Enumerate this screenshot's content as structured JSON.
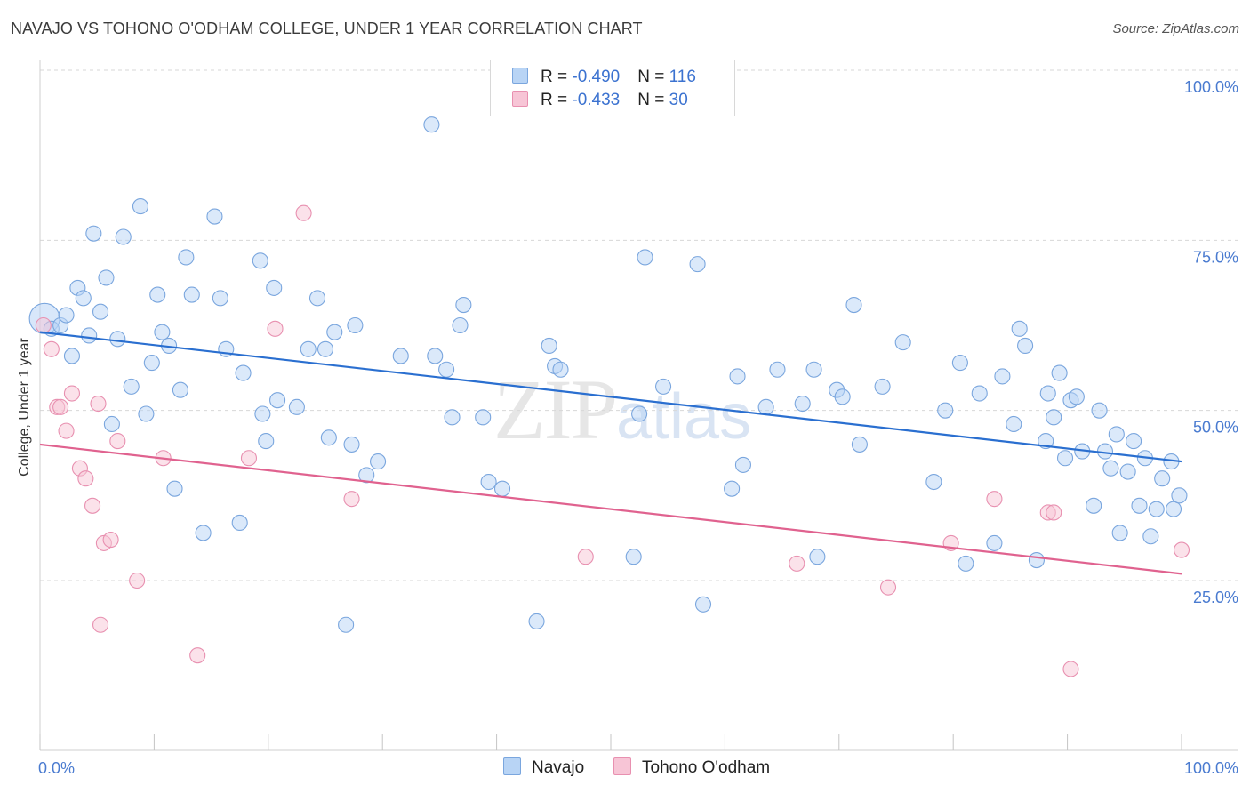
{
  "header": {
    "title": "NAVAJO VS TOHONO O'ODHAM COLLEGE, UNDER 1 YEAR CORRELATION CHART",
    "source": "Source: ZipAtlas.com"
  },
  "watermark": {
    "zip": "ZIP",
    "atlas": "atlas"
  },
  "legend": {
    "rows": [
      {
        "r_label": "R = ",
        "r_value": "-0.490",
        "n_label": "N = ",
        "n_value": "116"
      },
      {
        "r_label": "R = ",
        "r_value": "-0.433",
        "n_label": "N = ",
        "n_value": "30"
      }
    ]
  },
  "bottom_legend": {
    "navajo": "Navajo",
    "tohono": "Tohono O'odham"
  },
  "colors": {
    "navajo_fill": "#b8d4f5",
    "navajo_stroke": "#7aa6de",
    "navajo_line": "#2a6fd0",
    "tohono_fill": "#f7c5d6",
    "tohono_stroke": "#e890b0",
    "tohono_line": "#e0628f",
    "grid": "#d7d7d7",
    "axis_text": "#4a7bd0"
  },
  "chart_data": {
    "type": "scatter",
    "title": "NAVAJO VS TOHONO O'ODHAM COLLEGE, UNDER 1 YEAR CORRELATION CHART",
    "xlabel": "",
    "ylabel": "College, Under 1 year",
    "xlim": [
      0,
      100
    ],
    "ylim": [
      0,
      100
    ],
    "x_tick_labels": [
      "0.0%",
      "100.0%"
    ],
    "y_ticks": [
      25,
      50,
      75,
      100
    ],
    "y_tick_labels": [
      "25.0%",
      "50.0%",
      "75.0%",
      "100.0%"
    ],
    "grid": true,
    "series": [
      {
        "name": "Navajo",
        "r": -0.49,
        "n": 116,
        "trend": [
          [
            0,
            61.5
          ],
          [
            100,
            42.5
          ]
        ],
        "points": [
          [
            0.4,
            63.5
          ],
          [
            1.0,
            62
          ],
          [
            1.8,
            62.5
          ],
          [
            2.3,
            64
          ],
          [
            2.8,
            58
          ],
          [
            3.3,
            68
          ],
          [
            3.8,
            66.5
          ],
          [
            4.3,
            61
          ],
          [
            4.7,
            76
          ],
          [
            5.3,
            64.5
          ],
          [
            5.8,
            69.5
          ],
          [
            6.3,
            48
          ],
          [
            6.8,
            60.5
          ],
          [
            7.3,
            75.5
          ],
          [
            8.0,
            53.5
          ],
          [
            8.8,
            80
          ],
          [
            9.3,
            49.5
          ],
          [
            9.8,
            57
          ],
          [
            10.3,
            67
          ],
          [
            10.7,
            61.5
          ],
          [
            11.3,
            59.5
          ],
          [
            11.8,
            38.5
          ],
          [
            12.3,
            53
          ],
          [
            12.8,
            72.5
          ],
          [
            13.3,
            67
          ],
          [
            14.3,
            32
          ],
          [
            15.3,
            78.5
          ],
          [
            15.8,
            66.5
          ],
          [
            16.3,
            59
          ],
          [
            17.5,
            33.5
          ],
          [
            17.8,
            55.5
          ],
          [
            19.3,
            72
          ],
          [
            19.5,
            49.5
          ],
          [
            19.8,
            45.5
          ],
          [
            20.5,
            68
          ],
          [
            20.8,
            51.5
          ],
          [
            22.5,
            50.5
          ],
          [
            23.5,
            59
          ],
          [
            24.3,
            66.5
          ],
          [
            25.0,
            59
          ],
          [
            25.3,
            46
          ],
          [
            25.8,
            61.5
          ],
          [
            26.8,
            18.5
          ],
          [
            27.3,
            45
          ],
          [
            27.6,
            62.5
          ],
          [
            28.6,
            40.5
          ],
          [
            29.6,
            42.5
          ],
          [
            31.6,
            58
          ],
          [
            34.3,
            92
          ],
          [
            34.6,
            58
          ],
          [
            35.6,
            56
          ],
          [
            36.1,
            49
          ],
          [
            36.8,
            62.5
          ],
          [
            37.1,
            65.5
          ],
          [
            38.8,
            49
          ],
          [
            39.3,
            39.5
          ],
          [
            40.5,
            38.5
          ],
          [
            43.5,
            19
          ],
          [
            44.6,
            59.5
          ],
          [
            45.1,
            56.5
          ],
          [
            45.6,
            56
          ],
          [
            52.0,
            28.5
          ],
          [
            52.5,
            49.5
          ],
          [
            53.0,
            72.5
          ],
          [
            54.6,
            53.5
          ],
          [
            57.6,
            71.5
          ],
          [
            58.1,
            21.5
          ],
          [
            60.6,
            38.5
          ],
          [
            61.1,
            55
          ],
          [
            61.6,
            42
          ],
          [
            63.6,
            50.5
          ],
          [
            64.6,
            56
          ],
          [
            66.8,
            51
          ],
          [
            67.8,
            56
          ],
          [
            68.1,
            28.5
          ],
          [
            69.8,
            53
          ],
          [
            70.3,
            52
          ],
          [
            71.3,
            65.5
          ],
          [
            71.8,
            45
          ],
          [
            73.8,
            53.5
          ],
          [
            75.6,
            60
          ],
          [
            78.3,
            39.5
          ],
          [
            79.3,
            50
          ],
          [
            80.6,
            57
          ],
          [
            81.1,
            27.5
          ],
          [
            82.3,
            52.5
          ],
          [
            83.6,
            30.5
          ],
          [
            84.3,
            55
          ],
          [
            85.3,
            48
          ],
          [
            85.8,
            62
          ],
          [
            86.3,
            59.5
          ],
          [
            87.3,
            28
          ],
          [
            88.1,
            45.5
          ],
          [
            88.3,
            52.5
          ],
          [
            88.8,
            49
          ],
          [
            89.3,
            55.5
          ],
          [
            89.8,
            43
          ],
          [
            90.3,
            51.5
          ],
          [
            90.8,
            52
          ],
          [
            91.3,
            44
          ],
          [
            92.3,
            36
          ],
          [
            92.8,
            50
          ],
          [
            93.3,
            44
          ],
          [
            93.8,
            41.5
          ],
          [
            94.3,
            46.5
          ],
          [
            94.6,
            32
          ],
          [
            95.3,
            41
          ],
          [
            95.8,
            45.5
          ],
          [
            96.3,
            36
          ],
          [
            96.8,
            43
          ],
          [
            97.3,
            31.5
          ],
          [
            97.8,
            35.5
          ],
          [
            98.3,
            40
          ],
          [
            99.1,
            42.5
          ],
          [
            99.3,
            35.5
          ],
          [
            99.8,
            37.5
          ]
        ]
      },
      {
        "name": "Tohono O'odham",
        "r": -0.433,
        "n": 30,
        "trend": [
          [
            0,
            45
          ],
          [
            100,
            26
          ]
        ],
        "points": [
          [
            0.3,
            62.5
          ],
          [
            1.0,
            59
          ],
          [
            1.5,
            50.5
          ],
          [
            1.8,
            50.5
          ],
          [
            2.3,
            47
          ],
          [
            2.8,
            52.5
          ],
          [
            3.5,
            41.5
          ],
          [
            4.0,
            40
          ],
          [
            4.6,
            36
          ],
          [
            5.1,
            51
          ],
          [
            5.6,
            30.5
          ],
          [
            6.2,
            31
          ],
          [
            6.8,
            45.5
          ],
          [
            8.5,
            25
          ],
          [
            10.8,
            43
          ],
          [
            13.8,
            14
          ],
          [
            5.3,
            18.5
          ],
          [
            18.3,
            43
          ],
          [
            20.6,
            62
          ],
          [
            23.1,
            79
          ],
          [
            27.3,
            37
          ],
          [
            47.8,
            28.5
          ],
          [
            66.3,
            27.5
          ],
          [
            74.3,
            24
          ],
          [
            79.8,
            30.5
          ],
          [
            83.6,
            37
          ],
          [
            88.3,
            35
          ],
          [
            88.8,
            35
          ],
          [
            90.3,
            12
          ],
          [
            100.0,
            29.5
          ]
        ]
      }
    ]
  }
}
